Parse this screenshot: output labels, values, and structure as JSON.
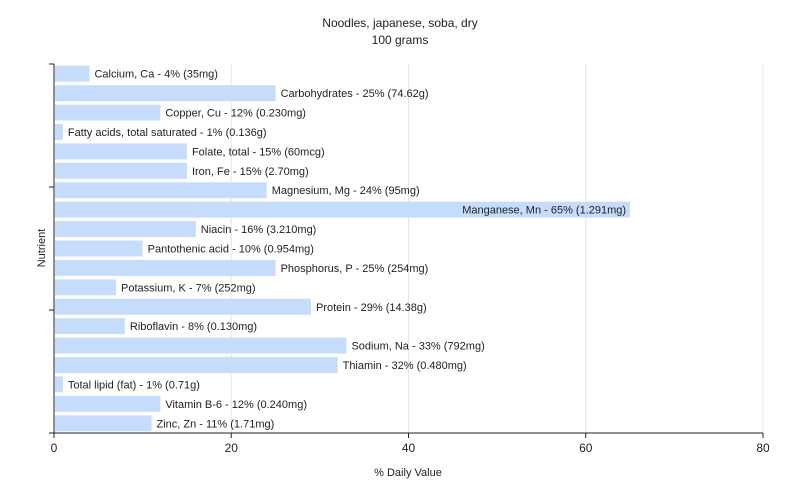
{
  "chart_data": {
    "type": "bar",
    "orientation": "horizontal",
    "title": "Noodles, japanese, soba, dry",
    "subtitle": "100 grams",
    "xlabel": "% Daily Value",
    "ylabel": "Nutrient",
    "xlim": [
      0,
      80
    ],
    "xticks": [
      0,
      20,
      40,
      60,
      80
    ],
    "grid": true,
    "bar_color": "#c5dcfc",
    "categories": [
      "Calcium, Ca",
      "Carbohydrates",
      "Copper, Cu",
      "Fatty acids, total saturated",
      "Folate, total",
      "Iron, Fe",
      "Magnesium, Mg",
      "Manganese, Mn",
      "Niacin",
      "Pantothenic acid",
      "Phosphorus, P",
      "Potassium, K",
      "Protein",
      "Riboflavin",
      "Sodium, Na",
      "Thiamin",
      "Total lipid (fat)",
      "Vitamin B-6",
      "Zinc, Zn"
    ],
    "values": [
      4,
      25,
      12,
      1,
      15,
      15,
      24,
      65,
      16,
      10,
      25,
      7,
      29,
      8,
      33,
      32,
      1,
      12,
      11
    ],
    "labels": [
      "Calcium, Ca - 4% (35mg)",
      "Carbohydrates - 25% (74.62g)",
      "Copper, Cu - 12% (0.230mg)",
      "Fatty acids, total saturated - 1% (0.136g)",
      "Folate, total - 15% (60mcg)",
      "Iron, Fe - 15% (2.70mg)",
      "Magnesium, Mg - 24% (95mg)",
      "Manganese, Mn - 65% (1.291mg)",
      "Niacin - 16% (3.210mg)",
      "Pantothenic acid - 10% (0.954mg)",
      "Phosphorus, P - 25% (254mg)",
      "Potassium, K - 7% (252mg)",
      "Protein - 29% (14.38g)",
      "Riboflavin - 8% (0.130mg)",
      "Sodium, Na - 33% (792mg)",
      "Thiamin - 32% (0.480mg)",
      "Total lipid (fat) - 1% (0.71g)",
      "Vitamin B-6 - 12% (0.240mg)",
      "Zinc, Zn - 11% (1.71mg)"
    ]
  }
}
